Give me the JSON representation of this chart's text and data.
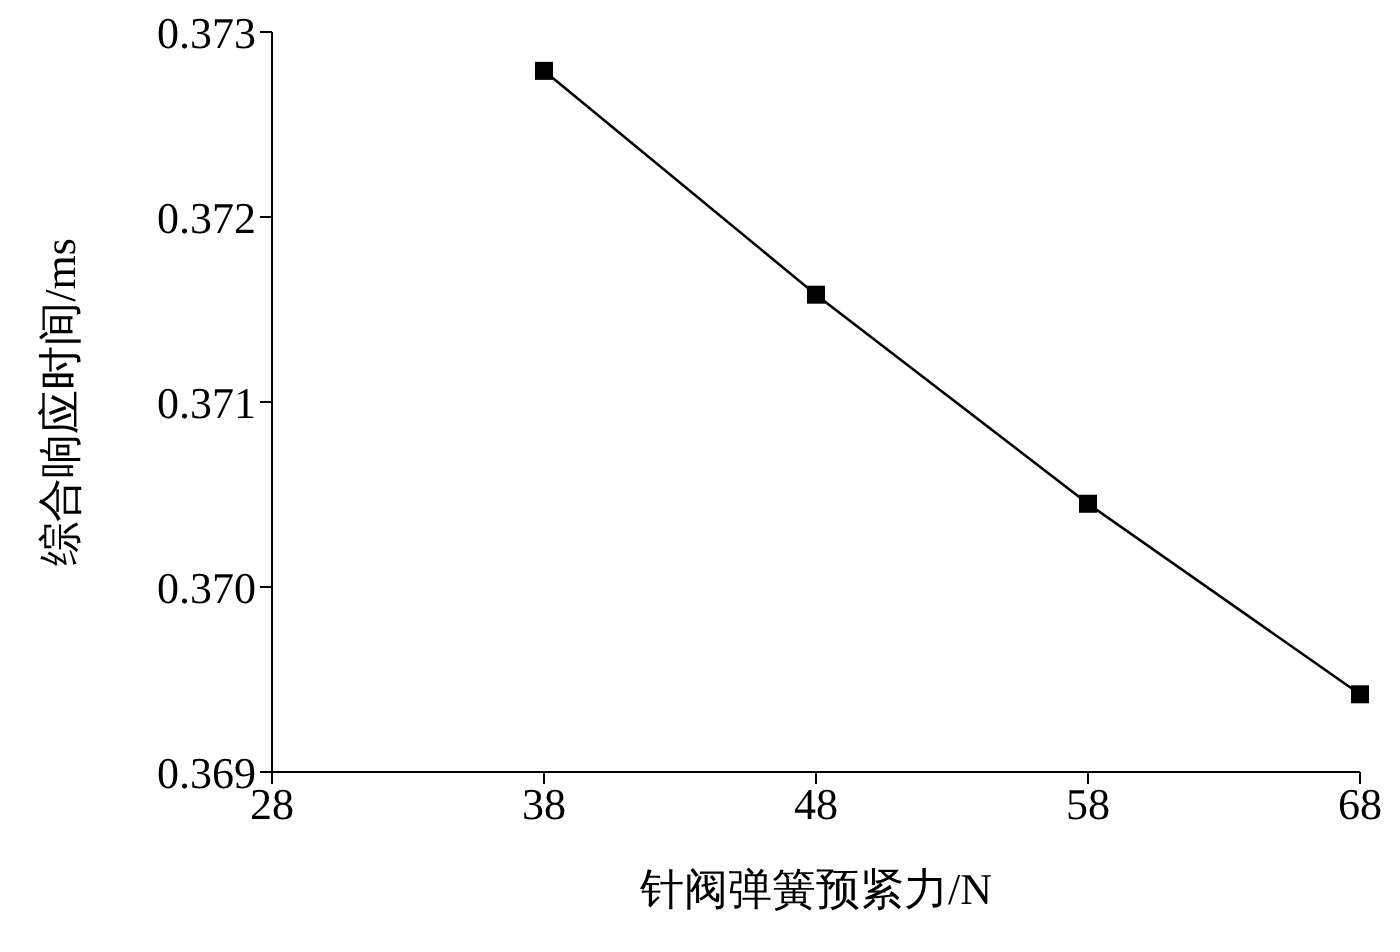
{
  "chart_data": {
    "type": "line",
    "xlabel": "针阀弹簧预紧力/N",
    "ylabel": "综合响应时间/ms",
    "x": [
      38,
      48,
      58,
      68
    ],
    "series": [
      {
        "color": "#000000",
        "values": [
          0.37279,
          0.37158,
          0.37045,
          0.36942
        ]
      }
    ],
    "xlim": [
      28,
      68
    ],
    "xticks": [
      28,
      38,
      48,
      58,
      68
    ],
    "ylim": [
      0.369,
      0.373
    ],
    "yticks": [
      0.369,
      {
        "value": 0.37,
        "label": "0.370"
      },
      0.371,
      0.372,
      0.373
    ],
    "grid": false,
    "legend": false,
    "marker": "square",
    "line_style": "solid"
  }
}
